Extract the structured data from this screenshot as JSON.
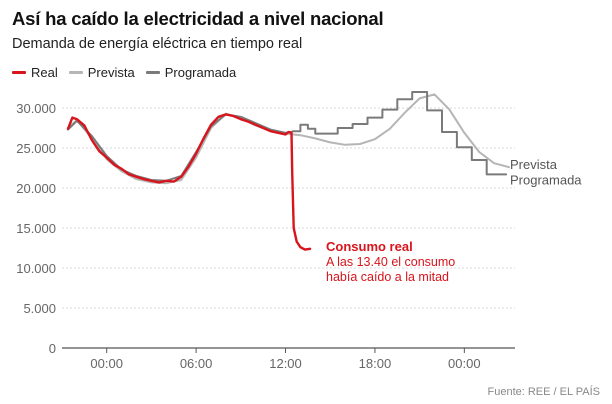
{
  "header": {
    "title": "Así ha caído la electricidad a nivel nacional",
    "subtitle": "Demanda de energía eléctrica en tiempo real"
  },
  "legend": [
    {
      "label": "Real",
      "color": "#d8141c"
    },
    {
      "label": "Prevista",
      "color": "#b5b5b5"
    },
    {
      "label": "Programada",
      "color": "#7a7a7a"
    }
  ],
  "annotation": {
    "title": "Consumo real",
    "line1": "A las 13.40 el consumo",
    "line2": "había caído a la mitad"
  },
  "source": "Fuente: REE / EL PAÍS",
  "chart_data": {
    "type": "line",
    "title": "Así ha caído la electricidad a nivel nacional",
    "subtitle": "Demanda de energía eléctrica en tiempo real",
    "xlabel": "",
    "ylabel": "",
    "x_unit": "hours (relative to 00:00 of the day)",
    "xlim": [
      -3,
      27.4
    ],
    "ylim": [
      0,
      30000
    ],
    "yticks": [
      0,
      5000,
      10000,
      15000,
      20000,
      25000,
      30000
    ],
    "ytick_labels": [
      "0",
      "5.000",
      "10.000",
      "15.000",
      "20.000",
      "25.000",
      "30.000"
    ],
    "xticks": [
      0,
      6,
      12,
      18,
      24
    ],
    "xtick_labels": [
      "00:00",
      "06:00",
      "12:00",
      "18:00",
      "00:00"
    ],
    "grid": true,
    "legend_position": "top-left",
    "series": [
      {
        "name": "Real",
        "color": "#d8141c",
        "points": [
          [
            -2.6,
            27400
          ],
          [
            -2.3,
            28800
          ],
          [
            -2,
            28600
          ],
          [
            -1.5,
            27800
          ],
          [
            -1,
            26000
          ],
          [
            -0.5,
            24600
          ],
          [
            0,
            23800
          ],
          [
            0.5,
            22900
          ],
          [
            1,
            22400
          ],
          [
            1.5,
            21700
          ],
          [
            2,
            21400
          ],
          [
            2.5,
            21100
          ],
          [
            3,
            20900
          ],
          [
            3.5,
            20700
          ],
          [
            4,
            20900
          ],
          [
            4.5,
            20800
          ],
          [
            5,
            21400
          ],
          [
            5.5,
            22700
          ],
          [
            6,
            24300
          ],
          [
            6.5,
            26200
          ],
          [
            7,
            27900
          ],
          [
            7.5,
            28900
          ],
          [
            8,
            29200
          ],
          [
            8.5,
            29000
          ],
          [
            9,
            28600
          ],
          [
            9.5,
            28300
          ],
          [
            10,
            27900
          ],
          [
            10.5,
            27500
          ],
          [
            11,
            27100
          ],
          [
            11.5,
            26900
          ],
          [
            12,
            26700
          ],
          [
            12.2,
            27000
          ],
          [
            12.4,
            26900
          ],
          [
            12.45,
            22000
          ],
          [
            12.55,
            15000
          ],
          [
            12.75,
            13300
          ],
          [
            13,
            12600
          ],
          [
            13.3,
            12300
          ],
          [
            13.65,
            12400
          ]
        ]
      },
      {
        "name": "Prevista",
        "color": "#b5b5b5",
        "points": [
          [
            -2.6,
            27500
          ],
          [
            -2,
            28500
          ],
          [
            -1,
            26200
          ],
          [
            0,
            23600
          ],
          [
            1,
            22100
          ],
          [
            2,
            21100
          ],
          [
            3,
            20700
          ],
          [
            4,
            20600
          ],
          [
            5,
            21000
          ],
          [
            6,
            23800
          ],
          [
            7,
            27500
          ],
          [
            8,
            29300
          ],
          [
            9,
            28700
          ],
          [
            10,
            27800
          ],
          [
            11,
            27200
          ],
          [
            12,
            26800
          ],
          [
            13,
            26600
          ],
          [
            14,
            26200
          ],
          [
            15,
            25700
          ],
          [
            16,
            25400
          ],
          [
            17,
            25500
          ],
          [
            18,
            26100
          ],
          [
            19,
            27400
          ],
          [
            20,
            29400
          ],
          [
            21,
            31200
          ],
          [
            22,
            31700
          ],
          [
            23,
            29800
          ],
          [
            24,
            26900
          ],
          [
            25,
            24500
          ],
          [
            26,
            23100
          ],
          [
            27,
            22600
          ]
        ]
      },
      {
        "name": "Programada",
        "color": "#7a7a7a",
        "points": [
          [
            -2.6,
            27300
          ],
          [
            -2,
            28400
          ],
          [
            -1,
            26500
          ],
          [
            0,
            24000
          ],
          [
            1,
            22300
          ],
          [
            2,
            21500
          ],
          [
            3,
            21000
          ],
          [
            4,
            20900
          ],
          [
            5,
            21500
          ],
          [
            6,
            24500
          ],
          [
            7,
            27700
          ],
          [
            8,
            29200
          ],
          [
            9,
            28900
          ],
          [
            10,
            28100
          ],
          [
            11,
            27300
          ],
          [
            12,
            26900
          ],
          [
            12.4,
            27000
          ],
          [
            12.5,
            27100
          ],
          [
            13,
            27100
          ],
          [
            13,
            27900
          ],
          [
            13.5,
            27900
          ],
          [
            13.5,
            27400
          ],
          [
            14,
            27400
          ],
          [
            14,
            26800
          ],
          [
            15.5,
            26800
          ],
          [
            15.5,
            27500
          ],
          [
            16.5,
            27500
          ],
          [
            16.5,
            28000
          ],
          [
            17.5,
            28000
          ],
          [
            17.5,
            28800
          ],
          [
            18.5,
            28800
          ],
          [
            18.5,
            29800
          ],
          [
            19.5,
            29800
          ],
          [
            19.5,
            31100
          ],
          [
            20.5,
            31100
          ],
          [
            20.5,
            32000
          ],
          [
            21.5,
            32000
          ],
          [
            21.5,
            29700
          ],
          [
            22.5,
            29700
          ],
          [
            22.5,
            27000
          ],
          [
            23.5,
            27000
          ],
          [
            23.5,
            25100
          ],
          [
            24.5,
            25100
          ],
          [
            24.5,
            23500
          ],
          [
            25.5,
            23500
          ],
          [
            25.5,
            21700
          ],
          [
            26.8,
            21700
          ]
        ]
      }
    ],
    "end_labels": [
      "Prevista",
      "Programada"
    ]
  }
}
